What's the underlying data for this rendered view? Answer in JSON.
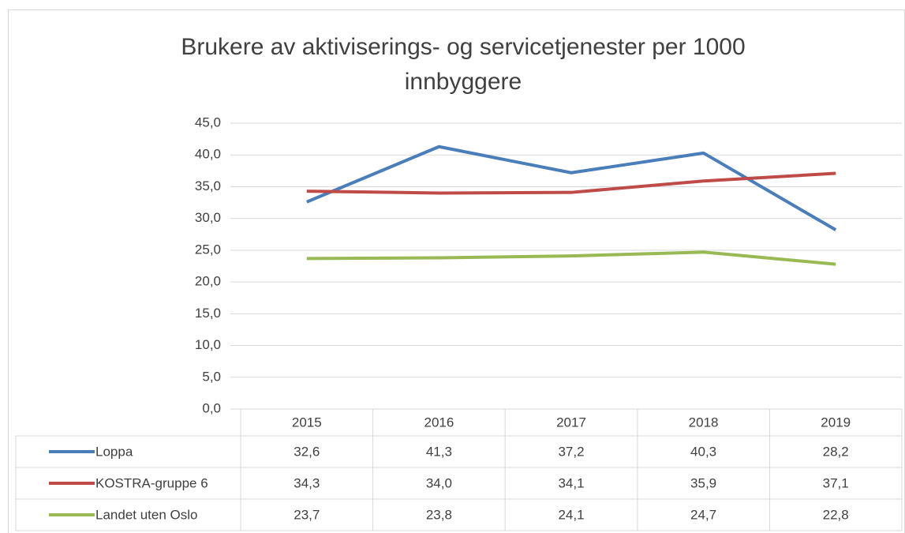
{
  "chart_data": {
    "type": "line",
    "title": "Brukere av aktiviserings- og servicetjenester per 1000 innbyggere",
    "categories": [
      "2015",
      "2016",
      "2017",
      "2018",
      "2019"
    ],
    "series": [
      {
        "name": "Loppa",
        "color": "#4a7ebb",
        "values": [
          32.6,
          41.3,
          37.2,
          40.3,
          28.2
        ],
        "value_labels": [
          "32,6",
          "41,3",
          "37,2",
          "40,3",
          "28,2"
        ]
      },
      {
        "name": "KOSTRA-gruppe 6",
        "color": "#be4b48",
        "values": [
          34.3,
          34.0,
          34.1,
          35.9,
          37.1
        ],
        "value_labels": [
          "34,3",
          "34,0",
          "34,1",
          "35,9",
          "37,1"
        ]
      },
      {
        "name": "Landet uten Oslo",
        "color": "#98b954",
        "values": [
          23.7,
          23.8,
          24.1,
          24.7,
          22.8
        ],
        "value_labels": [
          "23,7",
          "23,8",
          "24,1",
          "24,7",
          "22,8"
        ]
      }
    ],
    "ylim": [
      0,
      45
    ],
    "yticks": [
      {
        "value": 0,
        "label": "0,0"
      },
      {
        "value": 5,
        "label": "5,0"
      },
      {
        "value": 10,
        "label": "10,0"
      },
      {
        "value": 15,
        "label": "15,0"
      },
      {
        "value": 20,
        "label": "20,0"
      },
      {
        "value": 25,
        "label": "25,0"
      },
      {
        "value": 30,
        "label": "30,0"
      },
      {
        "value": 35,
        "label": "35,0"
      },
      {
        "value": 40,
        "label": "40,0"
      },
      {
        "value": 45,
        "label": "45,0"
      }
    ],
    "grid": true
  }
}
